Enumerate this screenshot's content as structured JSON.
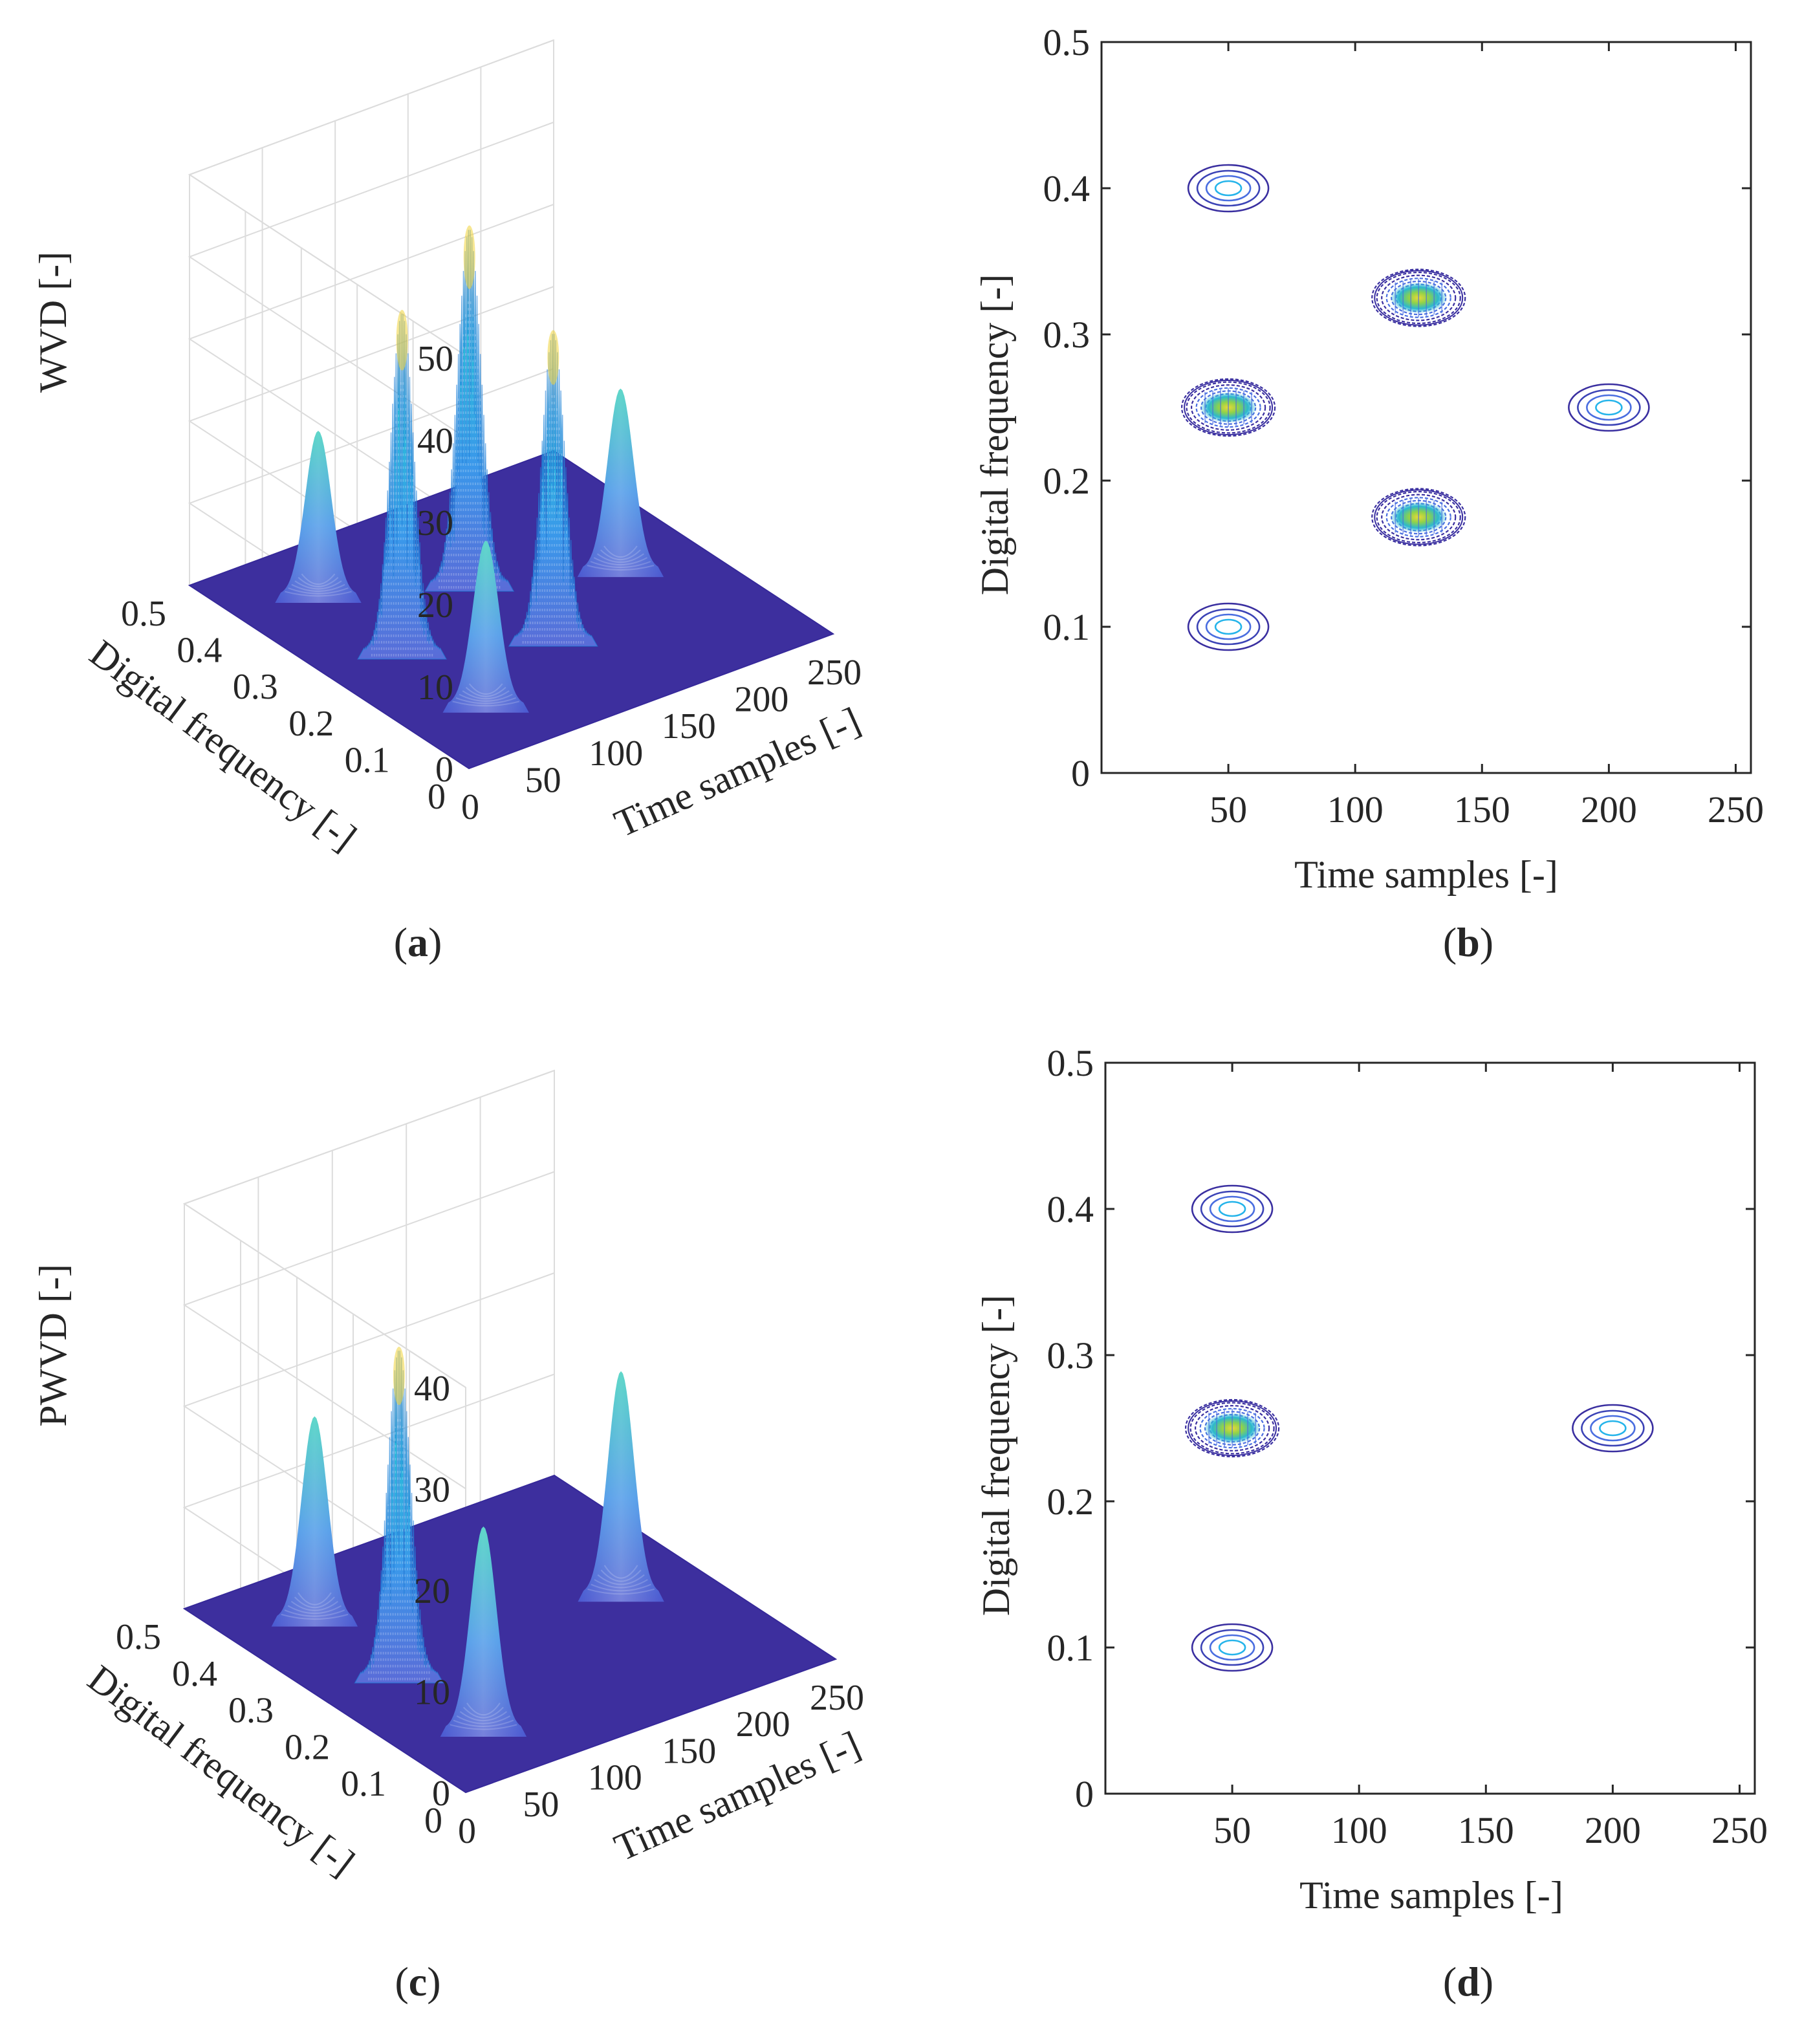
{
  "colors": {
    "surface_base": "#3d2f9e",
    "peak_low": "#4568d8",
    "peak_mid": "#2ab0e4",
    "peak_high": "#2cc8b8",
    "peak_top": "#f0d43a",
    "contour_outer": "#3a2fa0",
    "contour_mid": "#4a6ee0",
    "contour_inner": "#25b4ea",
    "contour_core": "#9ad63e",
    "grid": "#dcdcdc",
    "axis": "#262626"
  },
  "chart_data": [
    {
      "panel": "a",
      "type": "surface",
      "caption": "a",
      "xlabel": "Time samples [-]",
      "ylabel": "Digital frequency [-]",
      "zlabel": "WVD [-]",
      "xlim": [
        0,
        250
      ],
      "ylim": [
        0,
        0.5
      ],
      "zlim": [
        0,
        50
      ],
      "x_ticks": [
        "0",
        "50",
        "100",
        "150",
        "200",
        "250"
      ],
      "x_tick_values": [
        0,
        50,
        100,
        150,
        200,
        250
      ],
      "y_ticks": [
        "0",
        "0.1",
        "0.2",
        "0.3",
        "0.4",
        "0.5"
      ],
      "y_tick_values": [
        0,
        0.1,
        0.2,
        0.3,
        0.4,
        0.5
      ],
      "z_ticks": [
        "0",
        "10",
        "20",
        "30",
        "40",
        "50"
      ],
      "z_tick_values": [
        0,
        10,
        20,
        30,
        40,
        50
      ],
      "grid": true,
      "peaks": [
        {
          "t": 50,
          "f": 0.4,
          "height": 20,
          "kind": "smooth"
        },
        {
          "t": 50,
          "f": 0.25,
          "height": 41,
          "kind": "oscillating"
        },
        {
          "t": 50,
          "f": 0.1,
          "height": 20,
          "kind": "smooth"
        },
        {
          "t": 125,
          "f": 0.325,
          "height": 43,
          "kind": "oscillating"
        },
        {
          "t": 125,
          "f": 0.175,
          "height": 37,
          "kind": "oscillating"
        },
        {
          "t": 200,
          "f": 0.25,
          "height": 22,
          "kind": "smooth"
        }
      ]
    },
    {
      "panel": "b",
      "type": "contour",
      "caption": "b",
      "xlabel": "Time samples [-]",
      "ylabel": "Digital frequency [-]",
      "xlim": [
        0,
        256
      ],
      "ylim": [
        0,
        0.5
      ],
      "x_ticks": [
        "50",
        "100",
        "150",
        "200",
        "250"
      ],
      "x_tick_values": [
        50,
        100,
        150,
        200,
        250
      ],
      "y_ticks": [
        "0",
        "0.1",
        "0.2",
        "0.3",
        "0.4",
        "0.5"
      ],
      "y_tick_values": [
        0,
        0.1,
        0.2,
        0.3,
        0.4,
        0.5
      ],
      "grid": false,
      "blobs": [
        {
          "t": 50,
          "f": 0.4,
          "kind": "simple"
        },
        {
          "t": 50,
          "f": 0.25,
          "kind": "dense"
        },
        {
          "t": 50,
          "f": 0.1,
          "kind": "simple"
        },
        {
          "t": 125,
          "f": 0.325,
          "kind": "dense"
        },
        {
          "t": 125,
          "f": 0.175,
          "kind": "dense"
        },
        {
          "t": 200,
          "f": 0.25,
          "kind": "simple"
        }
      ]
    },
    {
      "panel": "c",
      "type": "surface",
      "caption": "c",
      "xlabel": "Time samples [-]",
      "ylabel": "Digital frequency [-]",
      "zlabel": "PWVD [-]",
      "xlim": [
        0,
        250
      ],
      "ylim": [
        0,
        0.5
      ],
      "zlim": [
        0,
        40
      ],
      "x_ticks": [
        "0",
        "50",
        "100",
        "150",
        "200",
        "250"
      ],
      "x_tick_values": [
        0,
        50,
        100,
        150,
        200,
        250
      ],
      "y_ticks": [
        "0",
        "0.1",
        "0.2",
        "0.3",
        "0.4",
        "0.5"
      ],
      "y_tick_values": [
        0,
        0.1,
        0.2,
        0.3,
        0.4,
        0.5
      ],
      "z_ticks": [
        "0",
        "10",
        "20",
        "30",
        "40"
      ],
      "z_tick_values": [
        0,
        10,
        20,
        30,
        40
      ],
      "grid": true,
      "peaks": [
        {
          "t": 50,
          "f": 0.4,
          "height": 20,
          "kind": "smooth"
        },
        {
          "t": 50,
          "f": 0.25,
          "height": 32,
          "kind": "oscillating"
        },
        {
          "t": 50,
          "f": 0.1,
          "height": 20,
          "kind": "smooth"
        },
        {
          "t": 200,
          "f": 0.25,
          "height": 22,
          "kind": "smooth"
        }
      ]
    },
    {
      "panel": "d",
      "type": "contour",
      "caption": "d",
      "xlabel": "Time samples [-]",
      "ylabel": "Digital frequency [-]",
      "xlim": [
        0,
        256
      ],
      "ylim": [
        0,
        0.5
      ],
      "x_ticks": [
        "50",
        "100",
        "150",
        "200",
        "250"
      ],
      "x_tick_values": [
        50,
        100,
        150,
        200,
        250
      ],
      "y_ticks": [
        "0",
        "0.1",
        "0.2",
        "0.3",
        "0.4",
        "0.5"
      ],
      "y_tick_values": [
        0,
        0.1,
        0.2,
        0.3,
        0.4,
        0.5
      ],
      "grid": false,
      "blobs": [
        {
          "t": 50,
          "f": 0.4,
          "kind": "simple"
        },
        {
          "t": 50,
          "f": 0.25,
          "kind": "dense"
        },
        {
          "t": 50,
          "f": 0.1,
          "kind": "simple"
        },
        {
          "t": 200,
          "f": 0.25,
          "kind": "simple"
        }
      ]
    }
  ]
}
